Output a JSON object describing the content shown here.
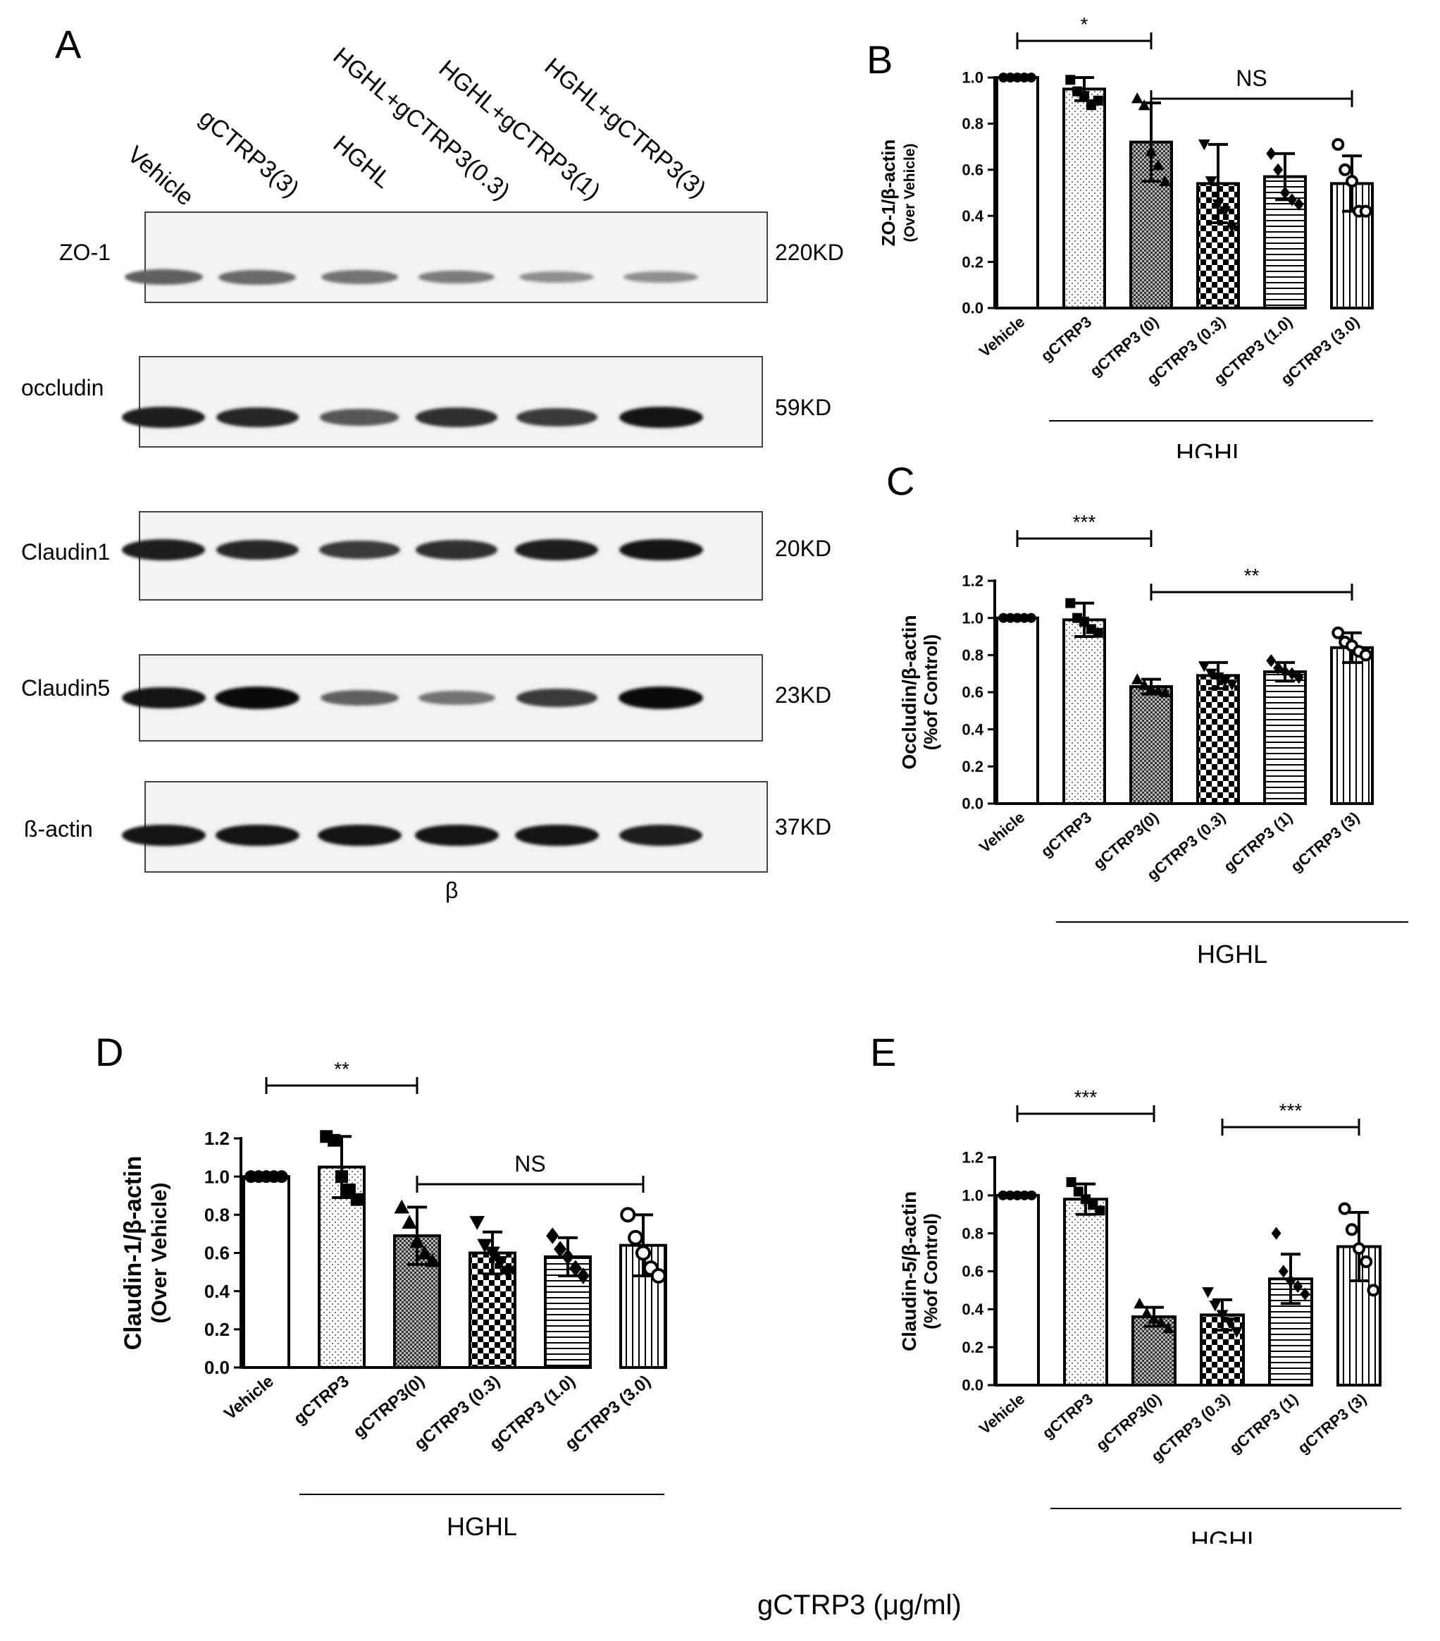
{
  "panel_letters": {
    "a": "A",
    "b": "B",
    "c": "C",
    "d": "D",
    "e": "E"
  },
  "blot": {
    "lanes": [
      "Vehicle",
      "gCTRP3(3)",
      "HGHL",
      "HGHL+gCTRP3(0.3)",
      "HGHL+gCTRP3(1)",
      "HGHL+gCTRP3(3)"
    ],
    "rows": [
      {
        "label": "ZO-1",
        "kd": "220KD",
        "intensity": [
          0.55,
          0.5,
          0.45,
          0.4,
          0.3,
          0.3
        ]
      },
      {
        "label": "occludin",
        "kd": "59KD",
        "intensity": [
          0.9,
          0.85,
          0.6,
          0.8,
          0.75,
          0.95
        ]
      },
      {
        "label": "Claudin1",
        "kd": "20KD",
        "intensity": [
          0.9,
          0.85,
          0.75,
          0.8,
          0.9,
          0.95
        ]
      },
      {
        "label": "Claudin5",
        "kd": "23KD",
        "intensity": [
          0.95,
          1.0,
          0.55,
          0.45,
          0.75,
          1.0
        ]
      },
      {
        "label": "ß-actin",
        "kd": "37KD",
        "intensity": [
          0.95,
          0.95,
          0.95,
          0.95,
          0.95,
          0.9
        ]
      }
    ],
    "beta_symbol": "β"
  },
  "footer_text": "gCTRP3 (μg/ml)",
  "chart_data": [
    {
      "panel": "B",
      "type": "bar",
      "ylabel_main": "ZO-1/β-actin",
      "ylabel_sub": "(Over Vehicle)",
      "ylim": [
        0,
        1.0
      ],
      "yticks": [
        "0.0",
        "0.2",
        "0.4",
        "0.6",
        "0.8",
        "1.0"
      ],
      "categories": [
        "Vehicle",
        "gCTRP3",
        "gCTRP3 (0)",
        "gCTRP3 (0.3)",
        "gCTRP3 (1.0)",
        "gCTRP3 (3.0)"
      ],
      "values": [
        1.0,
        0.95,
        0.72,
        0.54,
        0.57,
        0.54
      ],
      "errors": [
        0.0,
        0.05,
        0.17,
        0.17,
        0.1,
        0.12
      ],
      "points": [
        [
          1,
          1,
          1,
          1,
          1
        ],
        [
          0.99,
          0.94,
          0.92,
          0.88,
          0.9
        ],
        [
          0.91,
          0.88,
          0.68,
          0.62,
          0.55
        ],
        [
          0.71,
          0.55,
          0.45,
          0.42,
          0.35
        ],
        [
          0.67,
          0.6,
          0.5,
          0.47,
          0.45
        ],
        [
          0.71,
          0.6,
          0.55,
          0.42,
          0.42
        ]
      ],
      "markers": [
        "circle-filled",
        "square",
        "triangle",
        "triangle-down",
        "diamond",
        "circle-open"
      ],
      "sig": [
        {
          "from": 0,
          "to": 2,
          "text": "*"
        },
        {
          "from": 2,
          "to": 5,
          "text": "NS"
        }
      ],
      "group_label": "HGHL",
      "group_from": 1,
      "group_to": 5
    },
    {
      "panel": "C",
      "type": "bar",
      "ylabel_main": "Occludin/β-actin",
      "ylabel_sub": "(%of Control)",
      "ylim": [
        0,
        1.2
      ],
      "yticks": [
        "0.0",
        "0.2",
        "0.4",
        "0.6",
        "0.8",
        "1.0",
        "1.2"
      ],
      "categories": [
        "Vehicle",
        "gCTRP3",
        "gCTRP3(0)",
        "gCTRP3 (0.3)",
        "gCTRP3 (1)",
        "gCTRP3 (3)"
      ],
      "values": [
        1.0,
        0.99,
        0.63,
        0.69,
        0.71,
        0.84
      ],
      "errors": [
        0.0,
        0.09,
        0.04,
        0.07,
        0.05,
        0.08
      ],
      "points": [
        [
          1,
          1,
          1,
          1,
          1
        ],
        [
          1.08,
          1.0,
          0.98,
          0.94,
          0.92
        ],
        [
          0.67,
          0.64,
          0.62,
          0.61,
          0.6
        ],
        [
          0.74,
          0.7,
          0.68,
          0.66,
          0.64
        ],
        [
          0.77,
          0.73,
          0.71,
          0.7,
          0.68
        ],
        [
          0.92,
          0.87,
          0.85,
          0.82,
          0.8
        ]
      ],
      "markers": [
        "circle-filled",
        "square",
        "triangle",
        "triangle-down",
        "diamond",
        "circle-open"
      ],
      "sig": [
        {
          "from": 0,
          "to": 2,
          "text": "***"
        },
        {
          "from": 2,
          "to": 5,
          "text": "**"
        }
      ],
      "group_label": "HGHL",
      "group_from": 1,
      "group_to": 6
    },
    {
      "panel": "D",
      "type": "bar",
      "ylabel_main": "Claudin-1/β-actin",
      "ylabel_sub": "(Over Vehicle)",
      "ylim": [
        0,
        1.2
      ],
      "yticks": [
        "0.0",
        "0.2",
        "0.4",
        "0.6",
        "0.8",
        "1.0",
        "1.2"
      ],
      "categories": [
        "Vehicle",
        "gCTRP3",
        "gCTRP3(0)",
        "gCTRP3 (0.3)",
        "gCTRP3 (1.0)",
        "gCTRP3 (3.0)"
      ],
      "values": [
        1.0,
        1.05,
        0.69,
        0.6,
        0.58,
        0.64
      ],
      "errors": [
        0.0,
        0.16,
        0.15,
        0.11,
        0.1,
        0.16
      ],
      "points": [
        [
          1,
          1,
          1,
          1,
          1
        ],
        [
          1.21,
          1.19,
          1.0,
          0.93,
          0.88
        ],
        [
          0.84,
          0.76,
          0.66,
          0.6,
          0.56
        ],
        [
          0.76,
          0.64,
          0.6,
          0.55,
          0.5
        ],
        [
          0.69,
          0.62,
          0.58,
          0.52,
          0.48
        ],
        [
          0.8,
          0.68,
          0.6,
          0.52,
          0.48
        ]
      ],
      "markers": [
        "circle-filled",
        "square",
        "triangle",
        "triangle-down",
        "diamond",
        "circle-open"
      ],
      "sig": [
        {
          "from": 0,
          "to": 2,
          "text": "**"
        },
        {
          "from": 2,
          "to": 5,
          "text": "NS"
        }
      ],
      "group_label": "HGHL",
      "group_from": 1,
      "group_to": 5
    },
    {
      "panel": "E",
      "type": "bar",
      "ylabel_main": "Claudin-5/β-actin",
      "ylabel_sub": "(%of Control)",
      "ylim": [
        0,
        1.2
      ],
      "yticks": [
        "0.0",
        "0.2",
        "0.4",
        "0.6",
        "0.8",
        "1.0",
        "1.2"
      ],
      "categories": [
        "Vehicle",
        "gCTRP3",
        "gCTRP3(0)",
        "gCTRP3 (0.3)",
        "gCTRP3 (1)",
        "gCTRP3 (3)"
      ],
      "values": [
        1.0,
        0.98,
        0.36,
        0.37,
        0.56,
        0.73
      ],
      "errors": [
        0.0,
        0.08,
        0.05,
        0.08,
        0.13,
        0.18
      ],
      "points": [
        [
          1,
          1,
          1,
          1,
          1
        ],
        [
          1.07,
          1.02,
          0.98,
          0.95,
          0.92
        ],
        [
          0.43,
          0.38,
          0.35,
          0.33,
          0.3
        ],
        [
          0.49,
          0.42,
          0.37,
          0.33,
          0.28
        ],
        [
          0.8,
          0.6,
          0.55,
          0.52,
          0.48
        ],
        [
          0.93,
          0.82,
          0.72,
          0.65,
          0.5
        ]
      ],
      "markers": [
        "circle-filled",
        "square",
        "triangle",
        "triangle-down",
        "diamond",
        "circle-open"
      ],
      "sig": [
        {
          "from": 0,
          "to": 2,
          "text": "***"
        },
        {
          "from": 3,
          "to": 5,
          "text": "***"
        }
      ],
      "group_label": "HGHL",
      "group_from": 1,
      "group_to": 6
    }
  ]
}
